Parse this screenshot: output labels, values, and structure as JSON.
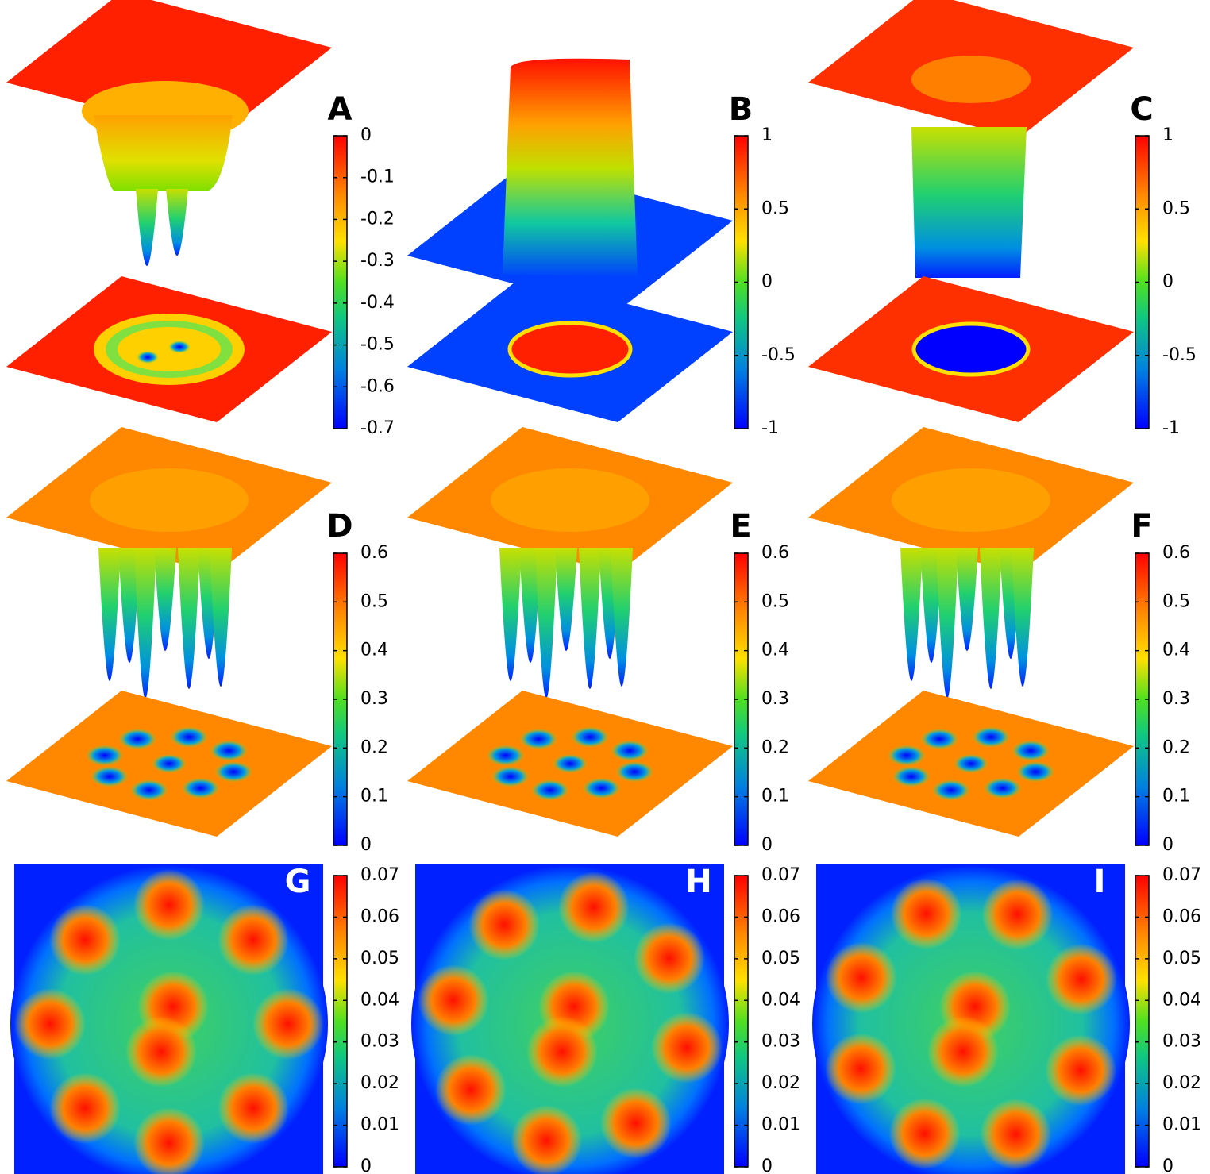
{
  "panels": [
    {
      "label": "A",
      "range": [
        -0.7,
        0
      ],
      "ticks": [
        -0.7,
        -0.6,
        -0.5,
        -0.4,
        -0.3,
        -0.2,
        -0.1,
        0
      ]
    },
    {
      "label": "B",
      "range": [
        -1,
        1
      ],
      "ticks": [
        -1,
        -0.5,
        0,
        0.5,
        1
      ]
    },
    {
      "label": "C",
      "range": [
        -1,
        1
      ],
      "ticks": [
        -1,
        -0.5,
        0,
        0.5,
        1
      ]
    },
    {
      "label": "D",
      "range": [
        0,
        0.6
      ],
      "ticks": [
        0,
        0.1,
        0.2,
        0.3,
        0.4,
        0.5,
        0.6
      ]
    },
    {
      "label": "E",
      "range": [
        0,
        0.6
      ],
      "ticks": [
        0,
        0.1,
        0.2,
        0.3,
        0.4,
        0.5,
        0.6
      ]
    },
    {
      "label": "F",
      "range": [
        0,
        0.6
      ],
      "ticks": [
        0,
        0.1,
        0.2,
        0.3,
        0.4,
        0.5,
        0.6
      ]
    },
    {
      "label": "G",
      "range": [
        0,
        0.07
      ],
      "ticks": [
        0,
        0.01,
        0.02,
        0.03,
        0.04,
        0.05,
        0.06,
        0.07
      ]
    },
    {
      "label": "H",
      "range": [
        0,
        0.07
      ],
      "ticks": [
        0,
        0.01,
        0.02,
        0.03,
        0.04,
        0.05,
        0.06,
        0.07
      ]
    },
    {
      "label": "I",
      "range": [
        0,
        0.07
      ],
      "ticks": [
        0,
        0.01,
        0.02,
        0.03,
        0.04,
        0.05,
        0.06,
        0.07
      ]
    }
  ]
}
